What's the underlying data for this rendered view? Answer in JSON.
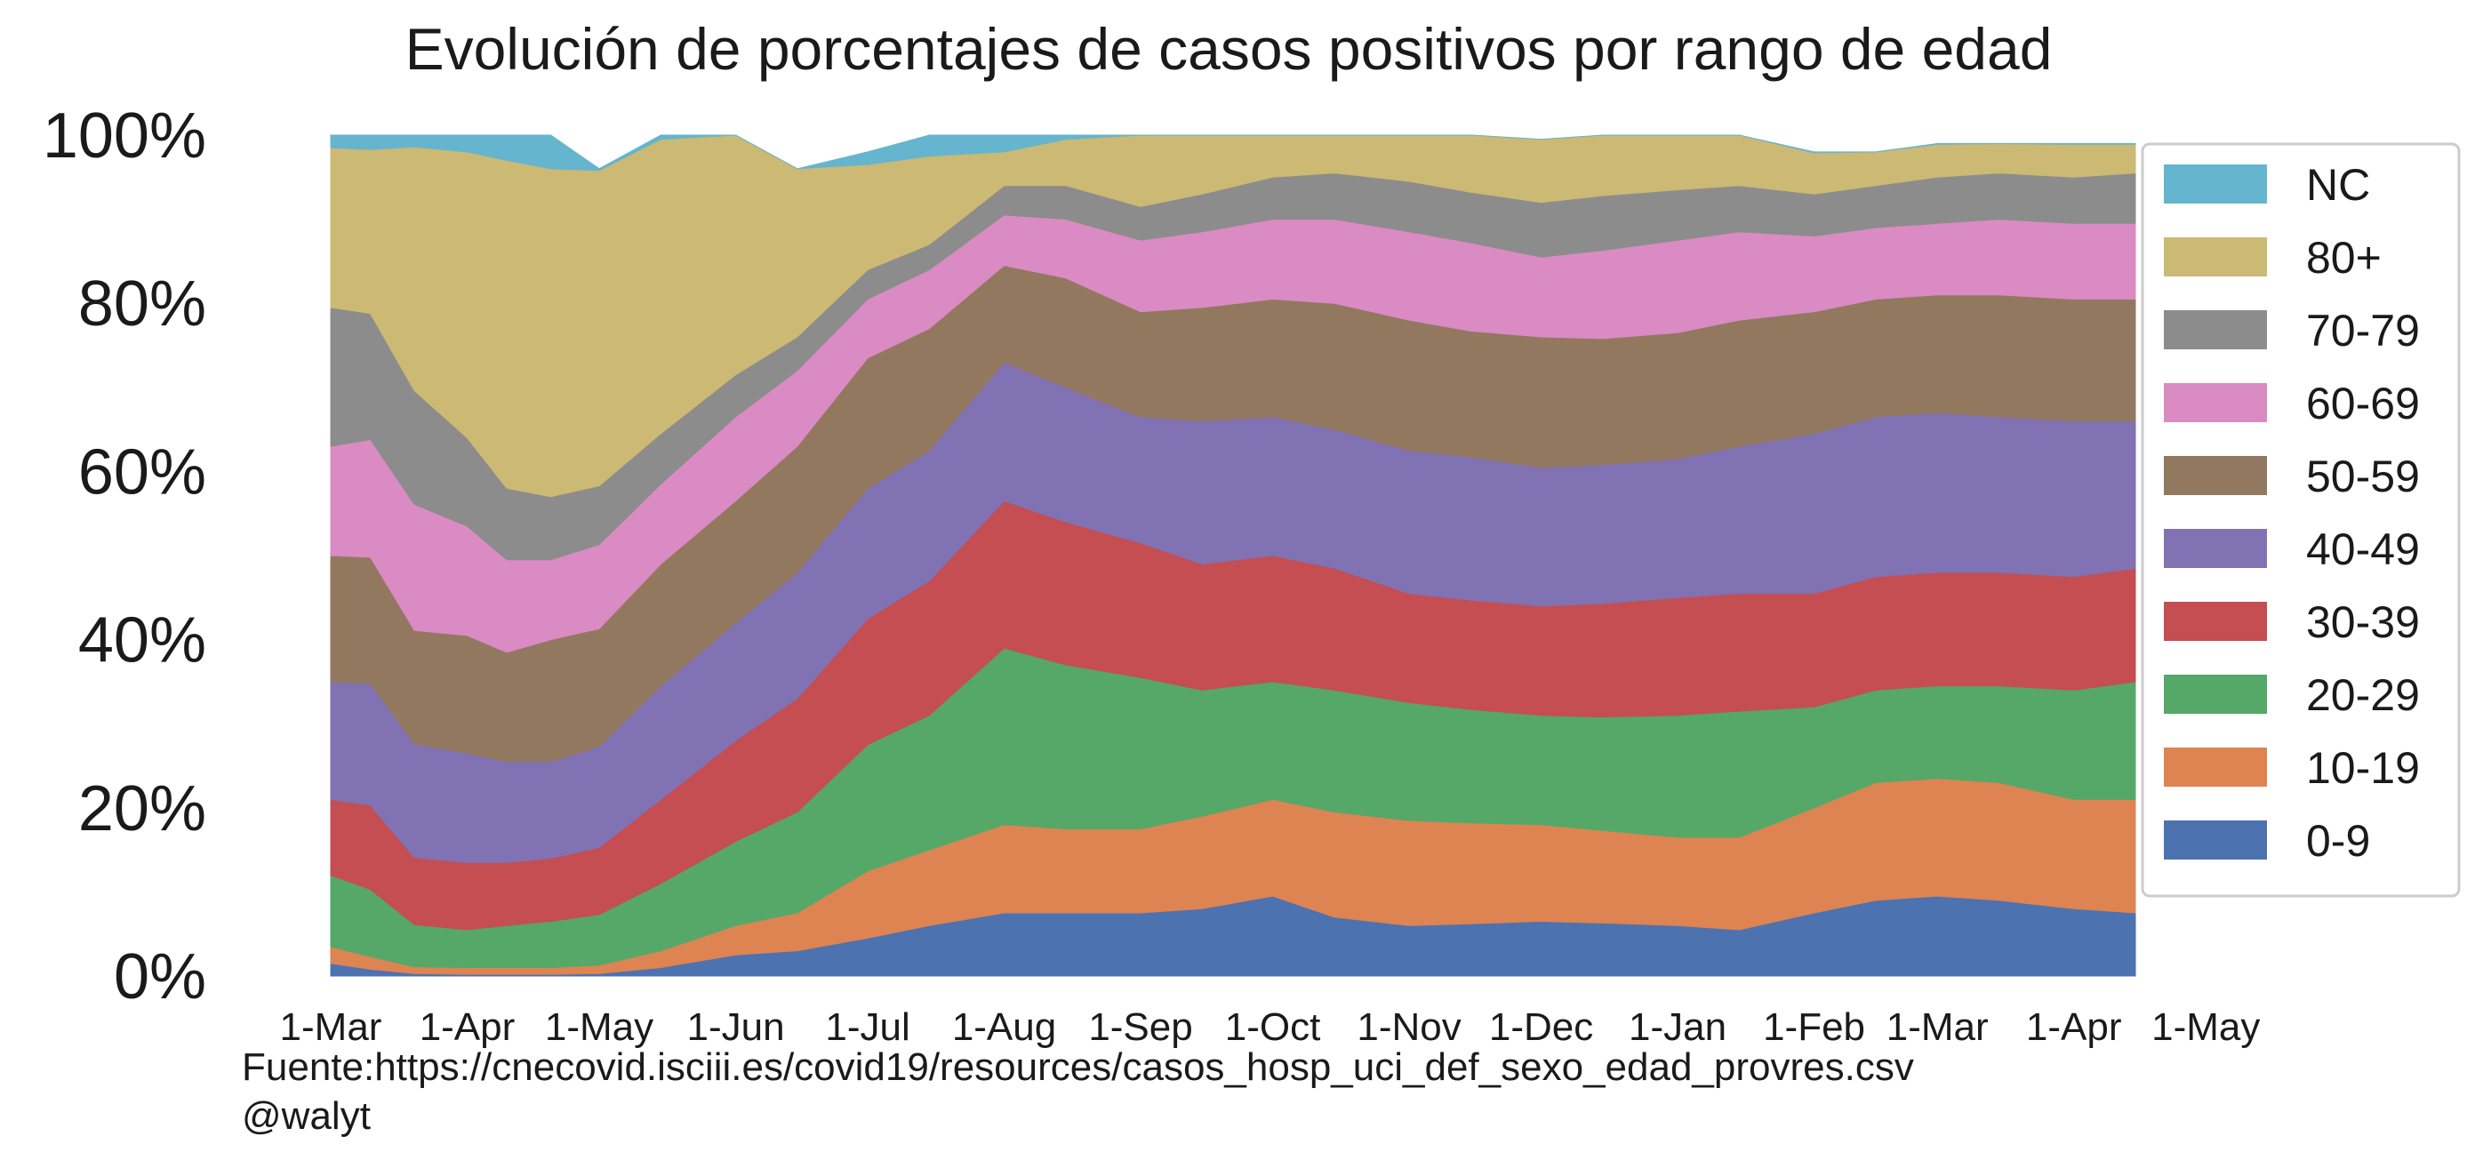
{
  "chart_data": {
    "type": "area",
    "stacked": true,
    "normalized": true,
    "title": "Evolución de porcentajes de casos positivos por rango de edad",
    "xlabel": "",
    "ylabel": "",
    "ylim": [
      0,
      100
    ],
    "yticks": [
      "0%",
      "20%",
      "40%",
      "60%",
      "80%",
      "100%"
    ],
    "xticks": [
      "1-Mar",
      "1-Apr",
      "1-May",
      "1-Jun",
      "1-Jul",
      "1-Aug",
      "1-Sep",
      "1-Oct",
      "1-Nov",
      "1-Dec",
      "1-Jan",
      "1-Feb",
      "1-Mar",
      "1-Apr",
      "1-May"
    ],
    "x": [
      "2020-03-01",
      "2020-03-10",
      "2020-03-20",
      "2020-04-01",
      "2020-04-10",
      "2020-04-20",
      "2020-05-01",
      "2020-05-15",
      "2020-06-01",
      "2020-06-15",
      "2020-07-01",
      "2020-07-15",
      "2020-08-01",
      "2020-08-15",
      "2020-09-01",
      "2020-09-15",
      "2020-10-01",
      "2020-10-15",
      "2020-11-01",
      "2020-11-15",
      "2020-12-01",
      "2020-12-15",
      "2021-01-01",
      "2021-01-15",
      "2021-02-01",
      "2021-02-15",
      "2021-03-01",
      "2021-03-15",
      "2021-04-01",
      "2021-04-15"
    ],
    "series": [
      {
        "name": "0-9",
        "color": "#4c72b0",
        "values": [
          1.5,
          0.8,
          0.3,
          0.2,
          0.2,
          0.2,
          0.3,
          1.0,
          2.5,
          3.0,
          4.5,
          6.0,
          7.5,
          7.5,
          7.5,
          8.0,
          9.5,
          7.0,
          6.0,
          6.2,
          6.5,
          6.3,
          6.0,
          5.5,
          7.5,
          9.0,
          9.5,
          9.0,
          8.0,
          7.5
        ]
      },
      {
        "name": "10-19",
        "color": "#dd8452",
        "values": [
          2.0,
          1.5,
          0.8,
          0.8,
          0.8,
          0.8,
          1.0,
          2.0,
          3.5,
          4.5,
          8.0,
          9.0,
          10.5,
          10.0,
          10.0,
          11.0,
          11.5,
          12.5,
          12.5,
          12.0,
          11.5,
          11.0,
          10.5,
          11.0,
          12.5,
          14.0,
          14.0,
          14.0,
          13.0,
          13.5
        ]
      },
      {
        "name": "20-29",
        "color": "#55a868",
        "values": [
          8.5,
          8.0,
          5.0,
          4.5,
          5.0,
          5.5,
          6.0,
          8.0,
          10.0,
          12.0,
          15.0,
          16.0,
          21.0,
          19.5,
          18.0,
          15.0,
          14.0,
          14.5,
          14.0,
          13.5,
          13.0,
          13.5,
          14.5,
          15.0,
          12.0,
          11.0,
          11.0,
          11.5,
          13.0,
          14.0
        ]
      },
      {
        "name": "30-39",
        "color": "#c44e52",
        "values": [
          9.0,
          10.0,
          8.0,
          8.0,
          7.5,
          7.5,
          8.0,
          10.0,
          12.0,
          13.5,
          15.0,
          16.0,
          17.5,
          17.0,
          16.0,
          15.0,
          15.0,
          14.5,
          13.0,
          13.0,
          13.0,
          13.5,
          14.0,
          14.0,
          13.5,
          13.5,
          13.5,
          13.5,
          13.5,
          13.5
        ]
      },
      {
        "name": "40-49",
        "color": "#8172b3",
        "values": [
          14.0,
          14.5,
          13.5,
          13.0,
          12.0,
          11.5,
          12.0,
          13.5,
          14.0,
          15.0,
          15.5,
          15.5,
          16.5,
          16.0,
          15.0,
          17.0,
          16.5,
          16.5,
          17.0,
          17.0,
          16.5,
          16.5,
          16.5,
          17.5,
          19.0,
          19.0,
          19.0,
          18.5,
          18.5,
          17.5
        ]
      },
      {
        "name": "50-59",
        "color": "#937860",
        "values": [
          15.0,
          15.0,
          13.5,
          14.0,
          13.0,
          14.5,
          14.0,
          14.5,
          14.5,
          15.0,
          15.5,
          14.5,
          11.5,
          13.0,
          12.5,
          13.5,
          14.0,
          15.0,
          15.5,
          15.0,
          15.5,
          15.0,
          15.0,
          15.0,
          14.5,
          14.0,
          14.0,
          14.5,
          14.5,
          14.5
        ]
      },
      {
        "name": "60-69",
        "color": "#da8bc3",
        "values": [
          13.0,
          14.0,
          15.0,
          13.0,
          11.0,
          9.5,
          10.0,
          9.5,
          10.0,
          9.0,
          7.0,
          7.0,
          6.0,
          7.0,
          8.5,
          9.0,
          9.5,
          10.0,
          10.5,
          10.5,
          9.5,
          10.5,
          11.0,
          10.5,
          9.0,
          8.5,
          8.5,
          9.0,
          9.0,
          9.0
        ]
      },
      {
        "name": "70-79",
        "color": "#8c8c8c",
        "values": [
          16.5,
          15.0,
          13.5,
          10.5,
          8.5,
          7.5,
          7.0,
          6.0,
          5.0,
          4.0,
          3.5,
          3.0,
          3.5,
          4.0,
          4.0,
          4.5,
          5.0,
          5.5,
          6.0,
          6.0,
          6.5,
          6.5,
          6.0,
          5.5,
          5.0,
          5.0,
          5.5,
          5.5,
          5.5,
          6.0
        ]
      },
      {
        "name": "80+",
        "color": "#ccb974",
        "values": [
          19.0,
          19.5,
          29.0,
          34.0,
          39.0,
          39.0,
          37.5,
          35.0,
          28.5,
          20.0,
          12.5,
          10.5,
          4.0,
          5.5,
          8.5,
          7.5,
          5.0,
          4.5,
          5.5,
          6.8,
          7.5,
          7.2,
          6.5,
          6.0,
          4.9,
          4.0,
          3.9,
          3.5,
          3.9,
          3.4
        ]
      },
      {
        "name": "NC",
        "color": "#64b5cd",
        "values": [
          1.5,
          1.7,
          1.4,
          2.0,
          3.0,
          4.0,
          0.2,
          0.5,
          0.0,
          0.0,
          1.5,
          2.5,
          2.0,
          0.5,
          0.0,
          0.0,
          0.0,
          0.0,
          0.0,
          0.0,
          0.0,
          0.0,
          0.0,
          0.0,
          0.1,
          0.0,
          0.1,
          0.0,
          0.1,
          0.1
        ]
      }
    ],
    "legend": {
      "position": "right",
      "order": [
        "NC",
        "80+",
        "70-79",
        "60-69",
        "50-59",
        "40-49",
        "30-39",
        "20-29",
        "10-19",
        "0-9"
      ]
    },
    "grid": false,
    "source": "Fuente:https://cnecovid.isciii.es/covid19/resources/casos_hosp_uci_def_sexo_edad_provres.csv",
    "credit": "@walyt"
  }
}
